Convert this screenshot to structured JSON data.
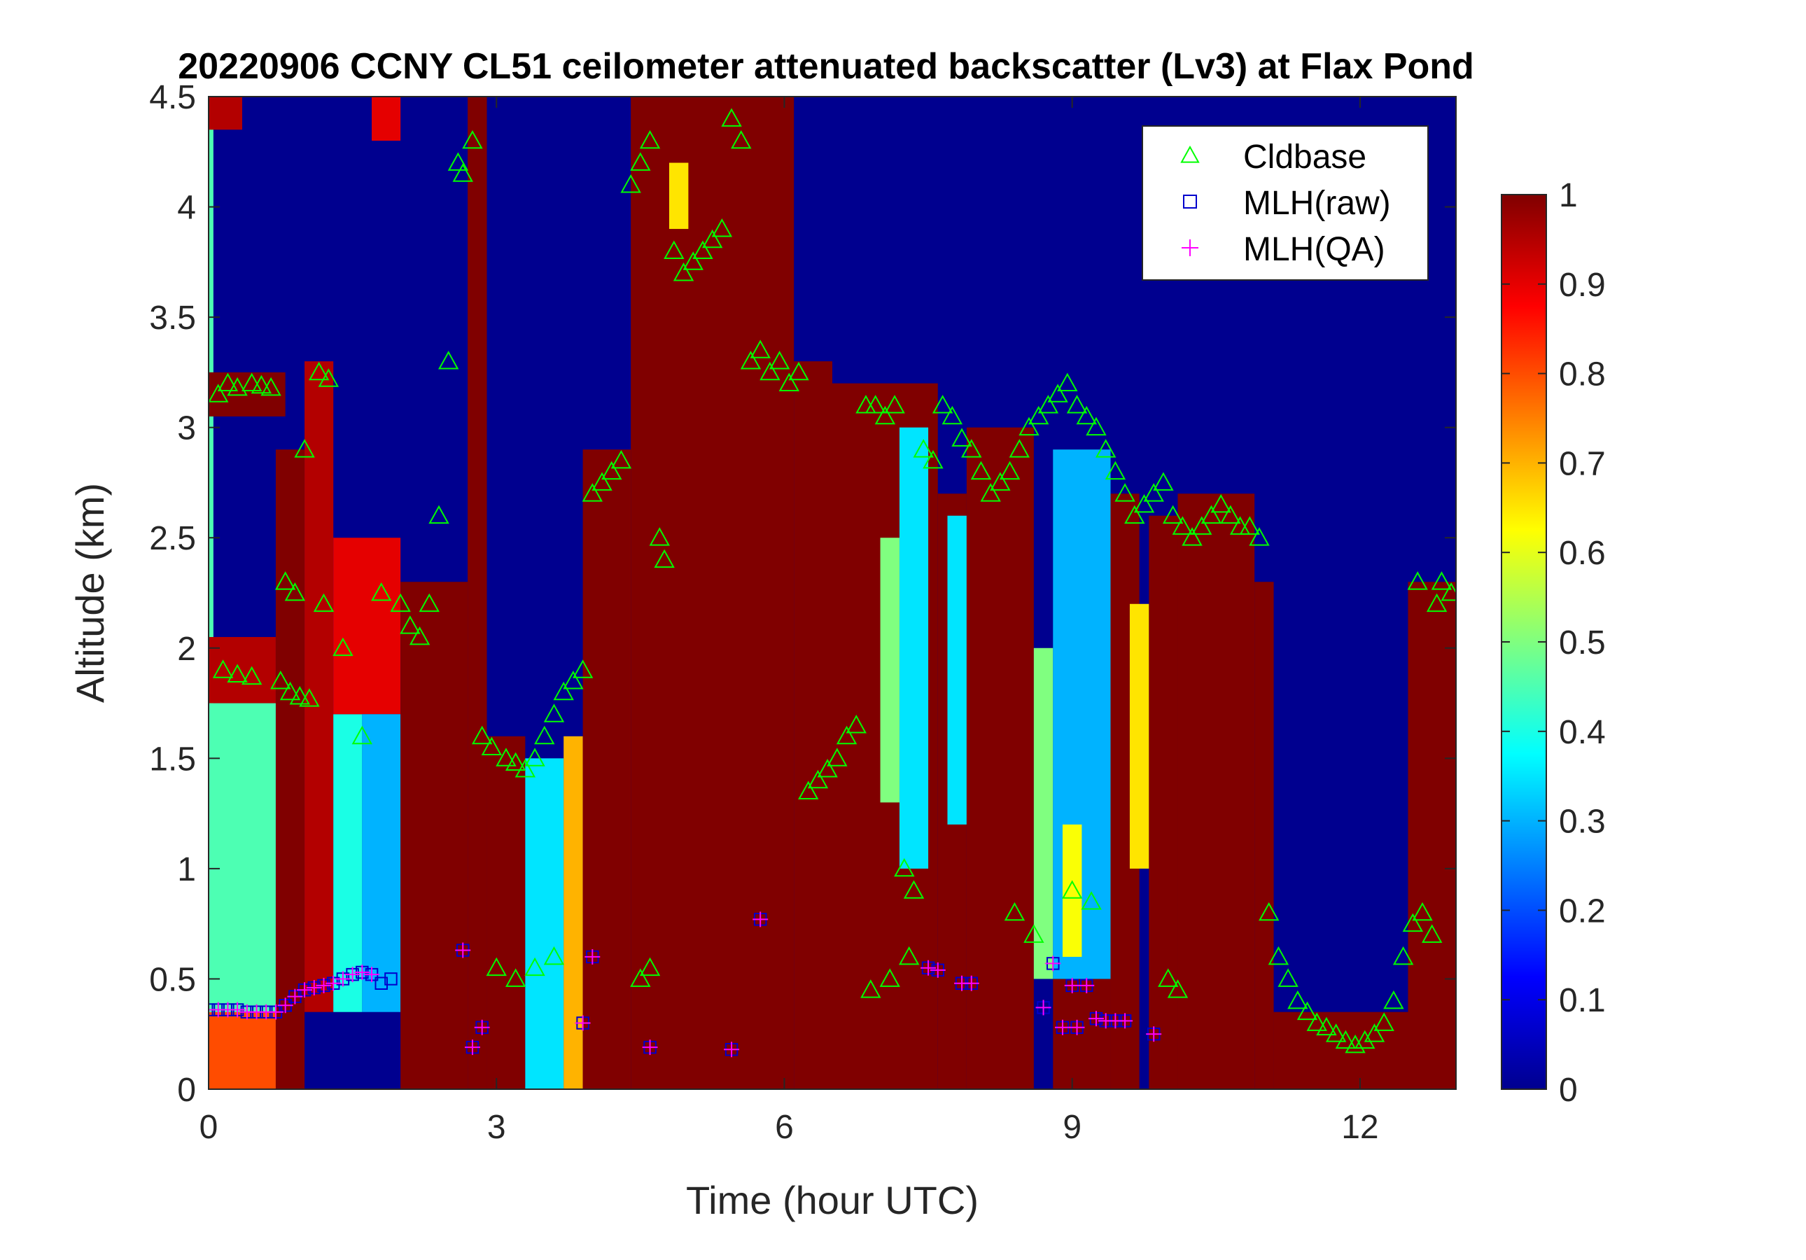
{
  "chart_data": {
    "type": "heatmap",
    "title": "20220906 CCNY CL51 ceilometer attenuated backscatter (Lv3) at Flax Pond",
    "xlabel": "Time (hour UTC)",
    "ylabel": "Altitude (km)",
    "xlim": [
      0,
      13
    ],
    "ylim": [
      0,
      4.5
    ],
    "x_ticks": [
      0,
      3,
      6,
      9,
      12
    ],
    "x_tick_labels": [
      "0",
      "3",
      "6",
      "9",
      "12"
    ],
    "y_ticks": [
      0,
      0.5,
      1,
      1.5,
      2,
      2.5,
      3,
      3.5,
      4,
      4.5
    ],
    "y_tick_labels": [
      "0",
      "0.5",
      "1",
      "1.5",
      "2",
      "2.5",
      "3",
      "3.5",
      "4",
      "4.5"
    ],
    "colorbar": {
      "colormap": "jet",
      "range": [
        0,
        1
      ],
      "ticks": [
        0,
        0.1,
        0.2,
        0.3,
        0.4,
        0.5,
        0.6,
        0.7,
        0.8,
        0.9,
        1
      ],
      "tick_labels": [
        "0",
        "0.1",
        "0.2",
        "0.3",
        "0.4",
        "0.5",
        "0.6",
        "0.7",
        "0.8",
        "0.9",
        "1"
      ]
    },
    "legend": {
      "placement": "top-right",
      "entries": [
        {
          "name": "Cldbase",
          "marker": "triangle",
          "color": "#00ff00"
        },
        {
          "name": "MLH(raw)",
          "marker": "square",
          "color": "#0000cc"
        },
        {
          "name": "MLH(QA)",
          "marker": "plus",
          "color": "#ff00ff"
        }
      ]
    },
    "backscatter_features": [
      {
        "t0": 0.0,
        "t1": 0.05,
        "z0": 0.0,
        "z1": 4.5,
        "value": 0.45
      },
      {
        "t0": 0.0,
        "t1": 0.7,
        "z0": 0.0,
        "z1": 0.35,
        "value": 0.8
      },
      {
        "t0": 0.0,
        "t1": 0.7,
        "z0": 0.35,
        "z1": 1.75,
        "value": 0.45
      },
      {
        "t0": 0.0,
        "t1": 0.7,
        "z0": 1.75,
        "z1": 2.05,
        "value": 0.95
      },
      {
        "t0": 0.0,
        "t1": 0.8,
        "z0": 3.05,
        "z1": 3.25,
        "value": 1.0
      },
      {
        "t0": 0.0,
        "t1": 0.35,
        "z0": 4.35,
        "z1": 4.5,
        "value": 0.95
      },
      {
        "t0": 0.7,
        "t1": 1.0,
        "z0": 0.0,
        "z1": 2.9,
        "value": 1.0
      },
      {
        "t0": 1.0,
        "t1": 1.3,
        "z0": 0.35,
        "z1": 3.3,
        "value": 0.95
      },
      {
        "t0": 1.3,
        "t1": 1.6,
        "z0": 0.35,
        "z1": 1.7,
        "value": 0.4
      },
      {
        "t0": 1.3,
        "t1": 2.0,
        "z0": 1.7,
        "z1": 2.5,
        "value": 0.9
      },
      {
        "t0": 1.6,
        "t1": 2.0,
        "z0": 0.35,
        "z1": 1.7,
        "value": 0.3
      },
      {
        "t0": 2.0,
        "t1": 2.7,
        "z0": 0.0,
        "z1": 2.3,
        "value": 1.0
      },
      {
        "t0": 1.7,
        "t1": 2.0,
        "z0": 4.3,
        "z1": 4.5,
        "value": 0.9
      },
      {
        "t0": 2.7,
        "t1": 2.9,
        "z0": 0.0,
        "z1": 4.5,
        "value": 1.0
      },
      {
        "t0": 2.9,
        "t1": 3.3,
        "z0": 0.0,
        "z1": 1.6,
        "value": 1.0
      },
      {
        "t0": 3.3,
        "t1": 3.7,
        "z0": 0.0,
        "z1": 1.5,
        "value": 0.35
      },
      {
        "t0": 3.7,
        "t1": 3.9,
        "z0": 0.0,
        "z1": 1.6,
        "value": 0.7
      },
      {
        "t0": 3.9,
        "t1": 4.4,
        "z0": 0.0,
        "z1": 2.9,
        "value": 1.0
      },
      {
        "t0": 4.4,
        "t1": 6.1,
        "z0": 0.0,
        "z1": 4.5,
        "value": 1.0
      },
      {
        "t0": 4.8,
        "t1": 5.0,
        "z0": 3.9,
        "z1": 4.2,
        "value": 0.65
      },
      {
        "t0": 6.1,
        "t1": 6.5,
        "z0": 0.0,
        "z1": 3.3,
        "value": 1.0
      },
      {
        "t0": 6.5,
        "t1": 7.6,
        "z0": 0.0,
        "z1": 3.2,
        "value": 1.0
      },
      {
        "t0": 7.0,
        "t1": 7.2,
        "z0": 1.3,
        "z1": 2.5,
        "value": 0.5
      },
      {
        "t0": 7.2,
        "t1": 7.5,
        "z0": 1.0,
        "z1": 3.0,
        "value": 0.35
      },
      {
        "t0": 7.6,
        "t1": 7.9,
        "z0": 0.0,
        "z1": 2.7,
        "value": 1.0
      },
      {
        "t0": 7.7,
        "t1": 7.9,
        "z0": 1.2,
        "z1": 2.6,
        "value": 0.35
      },
      {
        "t0": 7.9,
        "t1": 8.6,
        "z0": 0.0,
        "z1": 3.0,
        "value": 1.0
      },
      {
        "t0": 8.6,
        "t1": 8.8,
        "z0": 0.5,
        "z1": 2.0,
        "value": 0.5
      },
      {
        "t0": 8.8,
        "t1": 9.4,
        "z0": 0.0,
        "z1": 0.5,
        "value": 1.0
      },
      {
        "t0": 8.8,
        "t1": 9.4,
        "z0": 0.5,
        "z1": 2.9,
        "value": 0.3
      },
      {
        "t0": 8.9,
        "t1": 9.1,
        "z0": 0.6,
        "z1": 1.2,
        "value": 0.62
      },
      {
        "t0": 9.4,
        "t1": 9.7,
        "z0": 0.0,
        "z1": 2.7,
        "value": 1.0
      },
      {
        "t0": 9.6,
        "t1": 9.8,
        "z0": 1.0,
        "z1": 2.2,
        "value": 0.65
      },
      {
        "t0": 9.8,
        "t1": 10.1,
        "z0": 0.0,
        "z1": 2.6,
        "value": 1.0
      },
      {
        "t0": 10.1,
        "t1": 10.9,
        "z0": 0.0,
        "z1": 2.7,
        "value": 1.0
      },
      {
        "t0": 10.9,
        "t1": 11.1,
        "z0": 0.0,
        "z1": 2.3,
        "value": 1.0
      },
      {
        "t0": 11.1,
        "t1": 12.7,
        "z0": 0.0,
        "z1": 0.35,
        "value": 1.0
      },
      {
        "t0": 12.5,
        "t1": 13.0,
        "z0": 0.0,
        "z1": 2.3,
        "value": 1.0
      }
    ],
    "series": [
      {
        "name": "Cldbase",
        "marker": "triangle",
        "color": "#00ff00",
        "x": [
          0.1,
          0.2,
          0.3,
          0.45,
          0.55,
          0.65,
          0.75,
          0.85,
          0.95,
          1.05,
          1.15,
          1.25,
          0.15,
          0.3,
          0.45,
          0.8,
          0.9,
          1.0,
          1.2,
          1.4,
          1.6,
          1.8,
          2.0,
          2.1,
          2.2,
          2.3,
          2.4,
          2.5,
          2.6,
          2.65,
          2.75,
          2.85,
          2.95,
          3.1,
          3.2,
          3.3,
          3.4,
          3.5,
          3.6,
          3.7,
          3.8,
          3.9,
          4.0,
          4.1,
          4.2,
          4.3,
          4.4,
          4.5,
          4.6,
          4.7,
          4.75,
          4.85,
          4.95,
          5.05,
          5.15,
          5.25,
          5.35,
          5.45,
          5.55,
          5.65,
          5.75,
          5.85,
          5.95,
          6.05,
          6.15,
          6.25,
          6.35,
          6.45,
          6.55,
          6.65,
          6.75,
          6.85,
          6.95,
          7.05,
          7.15,
          7.25,
          7.35,
          7.45,
          7.55,
          7.65,
          7.75,
          7.85,
          7.95,
          8.05,
          8.15,
          8.25,
          8.35,
          8.45,
          8.55,
          8.65,
          8.75,
          8.85,
          8.95,
          9.05,
          9.15,
          9.25,
          9.35,
          9.45,
          9.55,
          9.65,
          9.75,
          9.85,
          9.95,
          10.05,
          10.15,
          10.25,
          10.35,
          10.45,
          10.55,
          10.65,
          10.75,
          10.85,
          10.95,
          11.05,
          11.15,
          11.25,
          11.35,
          11.45,
          11.55,
          11.65,
          11.75,
          11.85,
          11.95,
          12.05,
          12.15,
          12.25,
          12.35,
          12.45,
          12.55,
          12.65,
          12.75,
          12.85,
          12.95,
          3.0,
          3.2,
          3.4,
          3.6,
          4.5,
          4.6,
          6.9,
          7.1,
          7.3,
          8.4,
          8.6,
          9.0,
          9.2,
          10.0,
          10.1,
          12.6,
          12.8
        ],
        "y": [
          3.15,
          3.2,
          3.18,
          3.2,
          3.19,
          3.18,
          1.85,
          1.8,
          1.78,
          1.77,
          3.25,
          3.22,
          1.9,
          1.88,
          1.87,
          2.3,
          2.25,
          2.9,
          2.2,
          2.0,
          1.6,
          2.25,
          2.2,
          2.1,
          2.05,
          2.2,
          2.6,
          3.3,
          4.2,
          4.15,
          4.3,
          1.6,
          1.55,
          1.5,
          1.48,
          1.45,
          1.5,
          1.6,
          1.7,
          1.8,
          1.85,
          1.9,
          2.7,
          2.75,
          2.8,
          2.85,
          4.1,
          4.2,
          4.3,
          2.5,
          2.4,
          3.8,
          3.7,
          3.75,
          3.8,
          3.85,
          3.9,
          4.4,
          4.3,
          3.3,
          3.35,
          3.25,
          3.3,
          3.2,
          3.25,
          1.35,
          1.4,
          1.45,
          1.5,
          1.6,
          1.65,
          3.1,
          3.1,
          3.05,
          3.1,
          1.0,
          0.9,
          2.9,
          2.85,
          3.1,
          3.05,
          2.95,
          2.9,
          2.8,
          2.7,
          2.75,
          2.8,
          2.9,
          3.0,
          3.05,
          3.1,
          3.15,
          3.2,
          3.1,
          3.05,
          3.0,
          2.9,
          2.8,
          2.7,
          2.6,
          2.65,
          2.7,
          2.75,
          2.6,
          2.55,
          2.5,
          2.55,
          2.6,
          2.65,
          2.6,
          2.55,
          2.55,
          2.5,
          0.8,
          0.6,
          0.5,
          0.4,
          0.35,
          0.3,
          0.28,
          0.25,
          0.22,
          0.2,
          0.22,
          0.25,
          0.3,
          0.4,
          0.6,
          0.75,
          0.8,
          0.7,
          2.3,
          2.25,
          0.55,
          0.5,
          0.55,
          0.6,
          0.5,
          0.55,
          0.45,
          0.5,
          0.6,
          0.8,
          0.7,
          0.9,
          0.85,
          0.5,
          0.45,
          2.3,
          2.2
        ]
      },
      {
        "name": "MLH(raw)",
        "marker": "square",
        "color": "#0000cc",
        "x": [
          0.0,
          0.1,
          0.2,
          0.3,
          0.4,
          0.5,
          0.6,
          0.7,
          0.8,
          0.9,
          1.0,
          1.1,
          1.2,
          1.3,
          1.4,
          1.5,
          1.6,
          1.7,
          1.8,
          1.9,
          2.65,
          2.75,
          2.85,
          3.9,
          4.0,
          4.6,
          5.45,
          5.75,
          7.5,
          7.6,
          7.85,
          7.95,
          8.7,
          8.8,
          8.9,
          9.0,
          9.05,
          9.15,
          9.25,
          9.35,
          9.45,
          9.55,
          9.85
        ],
        "y": [
          0.36,
          0.36,
          0.36,
          0.36,
          0.35,
          0.35,
          0.35,
          0.35,
          0.38,
          0.42,
          0.45,
          0.46,
          0.47,
          0.48,
          0.5,
          0.52,
          0.53,
          0.52,
          0.48,
          0.5,
          0.63,
          0.19,
          0.28,
          0.3,
          0.6,
          0.19,
          0.18,
          0.77,
          0.55,
          0.54,
          0.48,
          0.48,
          0.37,
          0.57,
          0.28,
          0.47,
          0.28,
          0.47,
          0.32,
          0.31,
          0.31,
          0.31,
          0.25
        ]
      },
      {
        "name": "MLH(QA)",
        "marker": "plus",
        "color": "#ff00ff",
        "x": [
          0.0,
          0.1,
          0.2,
          0.3,
          0.4,
          0.5,
          0.6,
          0.7,
          0.8,
          0.9,
          1.0,
          1.1,
          1.2,
          1.3,
          1.4,
          1.5,
          1.6,
          1.7,
          2.65,
          2.75,
          2.85,
          3.9,
          4.0,
          4.6,
          5.45,
          5.75,
          7.5,
          7.6,
          7.85,
          7.95,
          8.7,
          8.8,
          8.9,
          9.0,
          9.05,
          9.15,
          9.25,
          9.35,
          9.45,
          9.55,
          9.85
        ],
        "y": [
          0.36,
          0.36,
          0.36,
          0.36,
          0.35,
          0.35,
          0.35,
          0.35,
          0.38,
          0.42,
          0.45,
          0.46,
          0.47,
          0.48,
          0.5,
          0.52,
          0.53,
          0.52,
          0.63,
          0.19,
          0.28,
          0.3,
          0.6,
          0.19,
          0.18,
          0.77,
          0.55,
          0.54,
          0.48,
          0.48,
          0.37,
          0.57,
          0.28,
          0.47,
          0.28,
          0.47,
          0.32,
          0.31,
          0.31,
          0.31,
          0.25
        ]
      }
    ]
  }
}
